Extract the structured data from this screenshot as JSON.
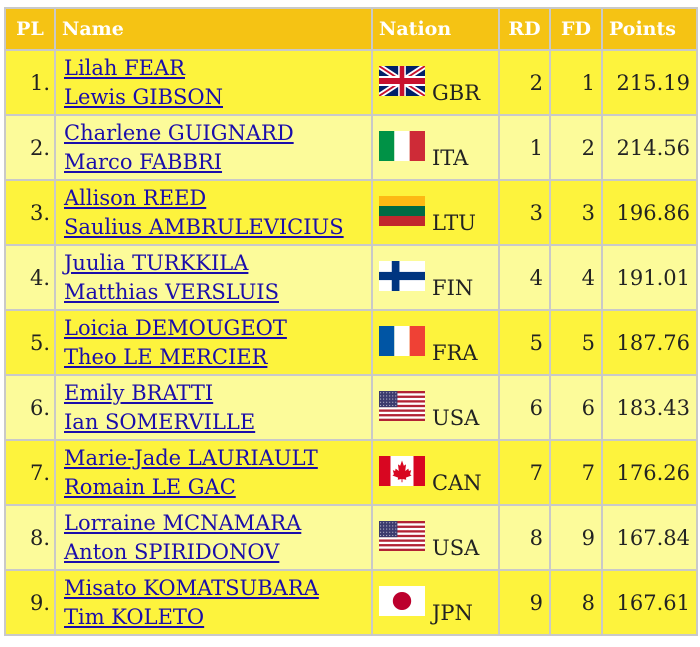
{
  "header": {
    "pl": "PL",
    "name": "Name",
    "nation": "Nation",
    "rd": "RD",
    "fd": "FD",
    "points": "Points"
  },
  "rows": [
    {
      "pl": "1.",
      "skater1": "Lilah FEAR",
      "skater2": "Lewis GIBSON",
      "code": "GBR",
      "flag": "uk-flag-icon",
      "rd": "2",
      "fd": "1",
      "points": "215.19"
    },
    {
      "pl": "2.",
      "skater1": "Charlene GUIGNARD",
      "skater2": "Marco FABBRI",
      "code": "ITA",
      "flag": "italy-flag-icon",
      "rd": "1",
      "fd": "2",
      "points": "214.56"
    },
    {
      "pl": "3.",
      "skater1": "Allison REED",
      "skater2": "Saulius AMBRULEVICIUS",
      "code": "LTU",
      "flag": "lithuania-flag-icon",
      "rd": "3",
      "fd": "3",
      "points": "196.86"
    },
    {
      "pl": "4.",
      "skater1": "Juulia TURKKILA",
      "skater2": "Matthias VERSLUIS",
      "code": "FIN",
      "flag": "finland-flag-icon",
      "rd": "4",
      "fd": "4",
      "points": "191.01"
    },
    {
      "pl": "5.",
      "skater1": "Loicia DEMOUGEOT",
      "skater2": "Theo LE MERCIER",
      "code": "FRA",
      "flag": "france-flag-icon",
      "rd": "5",
      "fd": "5",
      "points": "187.76"
    },
    {
      "pl": "6.",
      "skater1": "Emily BRATTI",
      "skater2": "Ian SOMERVILLE",
      "code": "USA",
      "flag": "usa-flag-icon",
      "rd": "6",
      "fd": "6",
      "points": "183.43"
    },
    {
      "pl": "7.",
      "skater1": "Marie-Jade LAURIAULT",
      "skater2": "Romain LE GAC",
      "code": "CAN",
      "flag": "canada-flag-icon",
      "rd": "7",
      "fd": "7",
      "points": "176.26"
    },
    {
      "pl": "8.",
      "skater1": "Lorraine MCNAMARA",
      "skater2": "Anton SPIRIDONOV",
      "code": "USA",
      "flag": "usa-flag-icon",
      "rd": "8",
      "fd": "9",
      "points": "167.84"
    },
    {
      "pl": "9.",
      "skater1": "Misato KOMATSUBARA",
      "skater2": "Tim KOLETO",
      "code": "JPN",
      "flag": "japan-flag-icon",
      "rd": "9",
      "fd": "8",
      "points": "167.61"
    }
  ],
  "colors": {
    "header_bg": "#f5c314",
    "row_odd": "#fdf33d",
    "row_even": "#fcfb9a",
    "link": "#1a0dab",
    "border": "#c9c9c9"
  }
}
